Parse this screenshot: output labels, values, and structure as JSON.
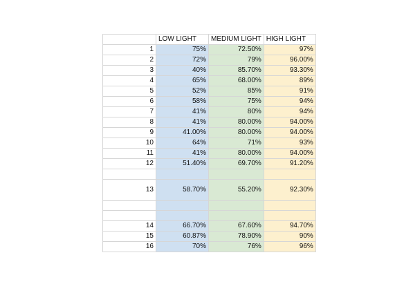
{
  "headers": [
    "",
    "LOW LIGHT",
    "MEDIUM LIGHT",
    "HIGH LIGHT"
  ],
  "rows": [
    {
      "id": "1",
      "low": "75%",
      "medium": "72.50%",
      "high": "97%"
    },
    {
      "id": "2",
      "low": "72%",
      "medium": "79%",
      "high": "96.00%"
    },
    {
      "id": "3",
      "low": "40%",
      "medium": "85.70%",
      "high": "93.30%"
    },
    {
      "id": "4",
      "low": "65%",
      "medium": "68.00%",
      "high": "89%"
    },
    {
      "id": "5",
      "low": "52%",
      "medium": "85%",
      "high": "91%"
    },
    {
      "id": "6",
      "low": "58%",
      "medium": "75%",
      "high": "94%"
    },
    {
      "id": "7",
      "low": "41%",
      "medium": "80%",
      "high": "94%"
    },
    {
      "id": "8",
      "low": "41%",
      "medium": "80.00%",
      "high": "94.00%"
    },
    {
      "id": "9",
      "low": "41.00%",
      "medium": "80.00%",
      "high": "94.00%"
    },
    {
      "id": "10",
      "low": "64%",
      "medium": "71%",
      "high": "93%"
    },
    {
      "id": "11",
      "low": "41%",
      "medium": "80.00%",
      "high": "94.00%"
    },
    {
      "id": "12",
      "low": "51.40%",
      "medium": "69.70%",
      "high": "91.20%"
    },
    {
      "id": "",
      "low": "",
      "medium": "",
      "high": ""
    },
    {
      "id": "13",
      "low": "58.70%",
      "medium": "55.20%",
      "high": "92.30%",
      "tall": true
    },
    {
      "id": "",
      "low": "",
      "medium": "",
      "high": ""
    },
    {
      "id": "",
      "low": "",
      "medium": "",
      "high": ""
    },
    {
      "id": "14",
      "low": "66.70%",
      "medium": "67.60%",
      "high": "94.70%"
    },
    {
      "id": "15",
      "low": "60.87%",
      "medium": "78.90%",
      "high": "90%"
    },
    {
      "id": "16",
      "low": "70%",
      "medium": "76%",
      "high": "96%"
    }
  ],
  "colors": {
    "low_fill": "#cfe0f1",
    "medium_fill": "#d9e9d3",
    "high_fill": "#fdf0ce",
    "grid": "#d6d6d6"
  }
}
